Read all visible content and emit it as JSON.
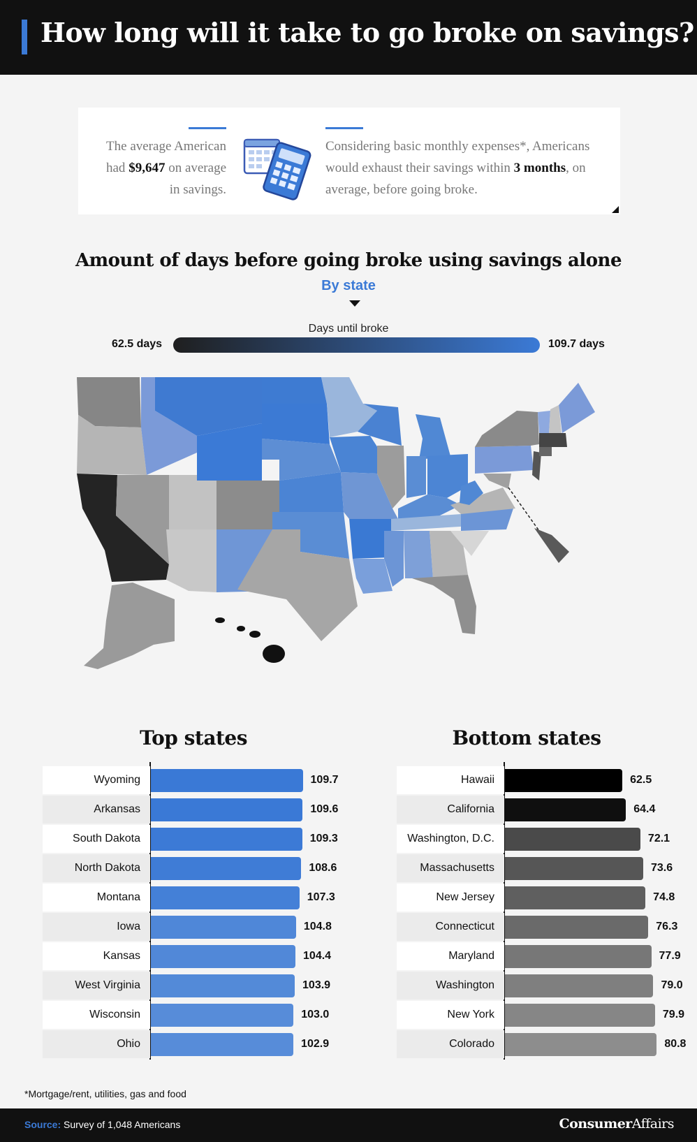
{
  "header": {
    "title": "How long will it take to go broke on savings?"
  },
  "info": {
    "left_pre": "The average American had ",
    "left_amount": "$9,647",
    "left_post": " on average in savings.",
    "right_pre": "Considering basic monthly expenses*, Americans would exhaust their savings within ",
    "right_bold": "3 months",
    "right_post": ", on average, before going broke."
  },
  "map": {
    "title": "Amount of days before going broke using savings alone",
    "subtitle": "By state",
    "legend_title": "Days until broke",
    "legend_min": "62.5 days",
    "legend_max": "109.7 days",
    "colors": {
      "low": "#1f1f1f",
      "high": "#3b7ad6"
    }
  },
  "top_title": "Top states",
  "bottom_title": "Bottom states",
  "chart_data": [
    {
      "type": "bar",
      "orientation": "horizontal",
      "title": "Top states",
      "categories": [
        "Wyoming",
        "Arkansas",
        "South Dakota",
        "North Dakota",
        "Montana",
        "Iowa",
        "Kansas",
        "West Virginia",
        "Wisconsin",
        "Ohio"
      ],
      "values": [
        109.7,
        109.6,
        109.3,
        108.6,
        107.3,
        104.8,
        104.4,
        103.9,
        103.0,
        102.9
      ],
      "value_labels": [
        "109.7",
        "109.6",
        "109.3",
        "108.6",
        "107.3",
        "104.8",
        "104.4",
        "103.9",
        "103.0",
        "102.9"
      ],
      "xlim": [
        0,
        118
      ]
    },
    {
      "type": "bar",
      "orientation": "horizontal",
      "title": "Bottom states",
      "categories": [
        "Hawaii",
        "California",
        "Washington, D.C.",
        "Massachusetts",
        "New Jersey",
        "Connecticut",
        "Maryland",
        "Washington",
        "New York",
        "Colorado"
      ],
      "values": [
        62.5,
        64.4,
        72.1,
        73.6,
        74.8,
        76.3,
        77.9,
        79.0,
        79.9,
        80.8
      ],
      "value_labels": [
        "62.5",
        "64.4",
        "72.1",
        "73.6",
        "74.8",
        "76.3",
        "77.9",
        "79.0",
        "79.9",
        "80.8"
      ],
      "xlim": [
        0,
        87
      ]
    }
  ],
  "footnote": "*Mortgage/rent, utilities, gas and food",
  "footer": {
    "source_label": "Source:",
    "source_text": " Survey of 1,048 Americans",
    "brand_bold": "Consumer",
    "brand_rest": "Affairs"
  }
}
